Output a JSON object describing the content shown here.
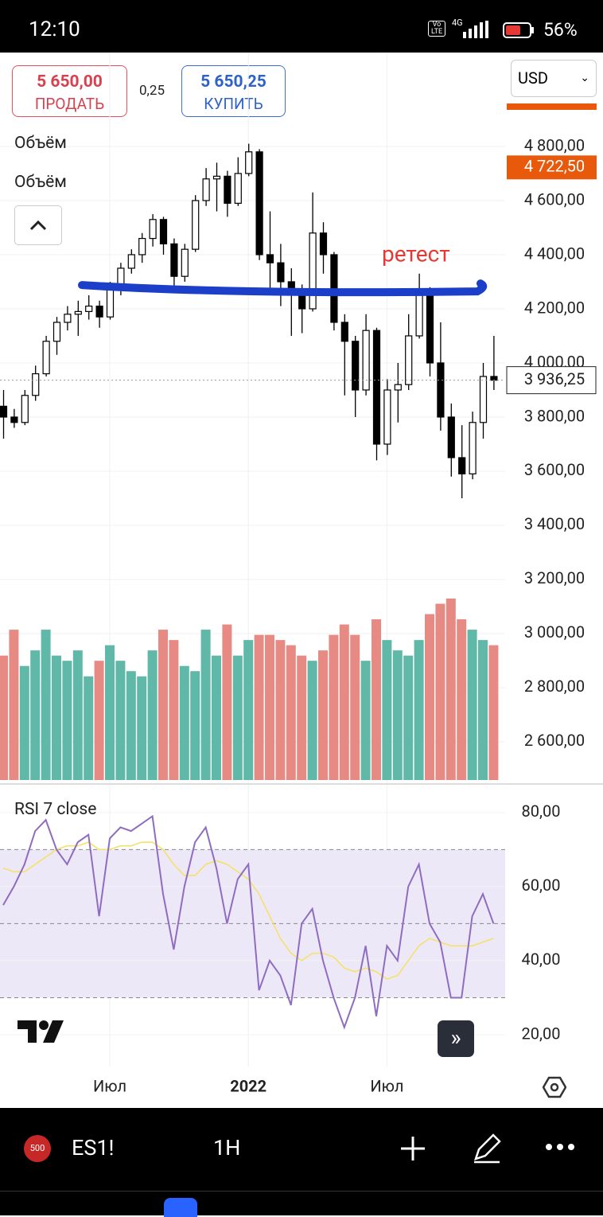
{
  "status_bar": {
    "time": "12:10",
    "network": "4G",
    "volte": "Vo LTE",
    "battery": "56%"
  },
  "trade": {
    "sell_price": "5 650,00",
    "sell_label": "ПРОДАТЬ",
    "spread": "0,25",
    "buy_price": "5 650,25",
    "buy_label": "КУПИТЬ",
    "currency": "USD"
  },
  "panel": {
    "volume_label_1": "Объём",
    "volume_label_2": "Объём",
    "rsi_label": "RSI 7 close"
  },
  "toolbar": {
    "badge": "500",
    "symbol": "ES1!",
    "interval": "1H"
  },
  "chart_data": {
    "type": "candlestick",
    "annotation": "ретест",
    "retest_level": 4270,
    "ylim": [
      2444,
      5147
    ],
    "yticks": [
      {
        "value": 2600,
        "label": "2 600,00"
      },
      {
        "value": 2800,
        "label": "2 800,00"
      },
      {
        "value": 3000,
        "label": "3 000,00"
      },
      {
        "value": 3200,
        "label": "3 200,00"
      },
      {
        "value": 3400,
        "label": "3 400,00"
      },
      {
        "value": 3600,
        "label": "3 600,00"
      },
      {
        "value": 3800,
        "label": "3 800,00"
      },
      {
        "value": 4000,
        "label": "4 000,00"
      },
      {
        "value": 4200,
        "label": "4 200,00"
      },
      {
        "value": 4400,
        "label": "4 400,00"
      },
      {
        "value": 4600,
        "label": "4 600,00"
      },
      {
        "value": 4800,
        "label": "4 800,00"
      }
    ],
    "last_price": {
      "value": 3936.25,
      "label": "3 936,25"
    },
    "marker_price": {
      "value": 4722.5,
      "label": "4 722,50"
    },
    "xticks": [
      {
        "value": 10,
        "label": "Июл"
      },
      {
        "value": 23,
        "label": "2022"
      },
      {
        "value": 36,
        "label": "Июл"
      }
    ],
    "up_color": "#ffffff",
    "down_color": "#000000",
    "volume_up_color": "#5fb8a8",
    "volume_down_color": "#e88a84",
    "candles": {
      "open": [
        3840,
        3800,
        3780,
        3880,
        3960,
        4080,
        4150,
        4180,
        4190,
        4210,
        4170,
        4290,
        4350,
        4400,
        4460,
        4530,
        4440,
        4320,
        4420,
        4600,
        4680,
        4690,
        4590,
        4700,
        4780,
        4400,
        4370,
        4300,
        4270,
        4200,
        4480,
        4400,
        4150,
        4080,
        3900,
        4120,
        3700,
        3900,
        3920,
        4100,
        4270,
        4000,
        3800,
        3650,
        3590,
        3780,
        3950
      ],
      "high": [
        3900,
        3830,
        3900,
        3990,
        4100,
        4170,
        4210,
        4230,
        4250,
        4230,
        4300,
        4370,
        4420,
        4480,
        4550,
        4540,
        4460,
        4440,
        4620,
        4720,
        4740,
        4710,
        4760,
        4810,
        4790,
        4560,
        4440,
        4350,
        4290,
        4630,
        4520,
        4410,
        4180,
        4100,
        4180,
        4130,
        3940,
        4000,
        4180,
        4330,
        4280,
        4150,
        3850,
        3770,
        3820,
        4000,
        4100
      ],
      "low": [
        3720,
        3760,
        3770,
        3860,
        3950,
        4030,
        4120,
        4100,
        4160,
        4130,
        4160,
        4250,
        4330,
        4370,
        4430,
        4400,
        4280,
        4300,
        4410,
        4580,
        4560,
        4540,
        4580,
        4690,
        4380,
        4270,
        4210,
        4100,
        4110,
        4190,
        4330,
        4120,
        3880,
        3800,
        3880,
        3640,
        3660,
        3780,
        3900,
        4090,
        3950,
        3750,
        3580,
        3500,
        3570,
        3720,
        3900
      ],
      "close": [
        3800,
        3780,
        3880,
        3960,
        4080,
        4150,
        4180,
        4190,
        4210,
        4170,
        4290,
        4350,
        4400,
        4460,
        4530,
        4440,
        4320,
        4420,
        4600,
        4680,
        4690,
        4590,
        4700,
        4780,
        4400,
        4370,
        4300,
        4270,
        4200,
        4480,
        4400,
        4150,
        4080,
        3900,
        4120,
        3700,
        3900,
        3920,
        4100,
        4270,
        4000,
        3800,
        3650,
        3590,
        3780,
        3950,
        3936.25
      ]
    },
    "volume": [
      2.4,
      2.9,
      2.2,
      2.5,
      2.9,
      2.4,
      2.3,
      2.5,
      2.0,
      2.3,
      2.6,
      2.3,
      2.1,
      2.0,
      2.5,
      2.9,
      2.7,
      2.2,
      2.1,
      2.9,
      2.4,
      3.0,
      2.4,
      2.7,
      2.8,
      2.8,
      2.7,
      2.6,
      2.4,
      2.3,
      2.5,
      2.8,
      3.0,
      2.8,
      2.3,
      3.1,
      2.7,
      2.5,
      2.4,
      2.7,
      3.2,
      3.4,
      3.5,
      3.1,
      2.9,
      2.7,
      2.6
    ],
    "rsi": {
      "ylim": [
        11.4,
        87.7
      ],
      "yticks": [
        {
          "value": 20,
          "label": "20,00"
        },
        {
          "value": 40,
          "label": "40,00"
        },
        {
          "value": 60,
          "label": "60,00"
        },
        {
          "value": 80,
          "label": "80,00"
        }
      ],
      "bands": [
        30,
        50,
        70
      ],
      "color": "#8e6cc0",
      "ma_color": "#f5e16a",
      "values": [
        55,
        60,
        66,
        75,
        78,
        70,
        66,
        72,
        74,
        52,
        73,
        76,
        75,
        77,
        79,
        58,
        43,
        60,
        72,
        76,
        65,
        50,
        62,
        66,
        32,
        40,
        36,
        28,
        50,
        54,
        40,
        30,
        22,
        30,
        44,
        25,
        44,
        40,
        60,
        66,
        50,
        45,
        30,
        30,
        52,
        58,
        50
      ],
      "ma": [
        65,
        64,
        64,
        66,
        68,
        70,
        71,
        71,
        72,
        70,
        70,
        71,
        71,
        72,
        72,
        70,
        66,
        63,
        63,
        66,
        67,
        66,
        64,
        62,
        58,
        52,
        46,
        42,
        40,
        42,
        42,
        41,
        38,
        37,
        38,
        37,
        35,
        36,
        40,
        44,
        46,
        45,
        44,
        44,
        44,
        45,
        46
      ]
    }
  }
}
